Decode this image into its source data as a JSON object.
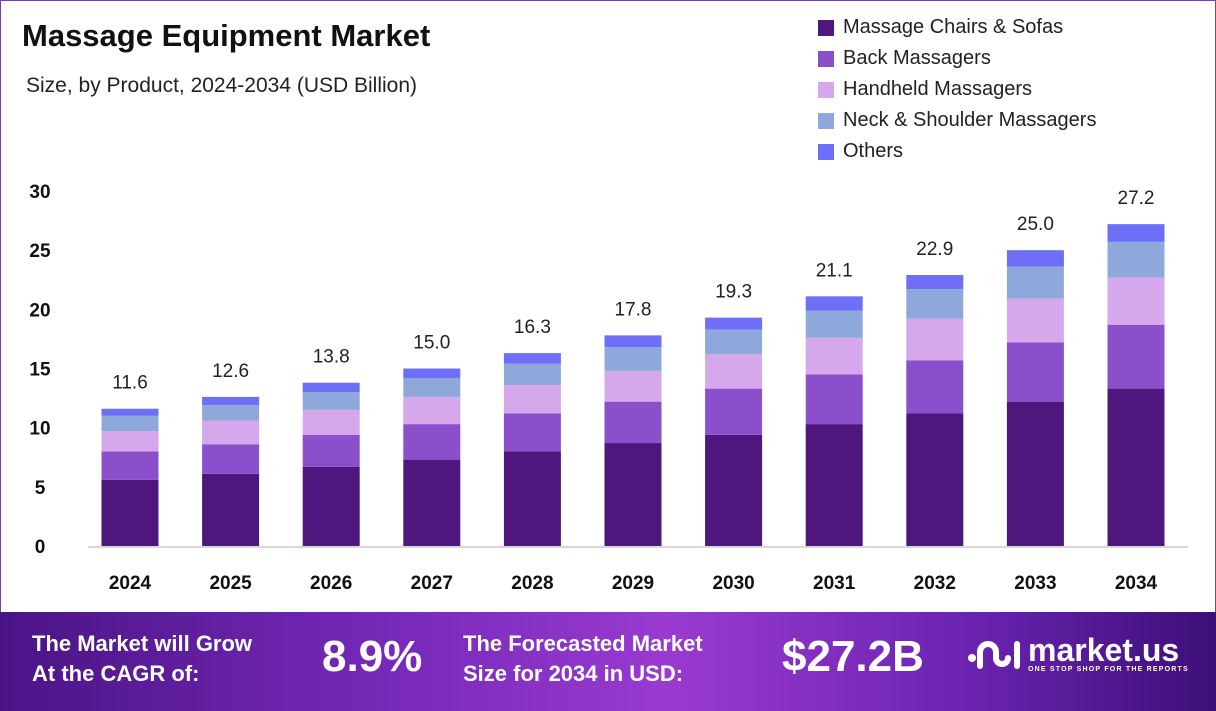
{
  "chart_data": {
    "type": "bar",
    "stacked": true,
    "title": "Massage Equipment Market",
    "subtitle": "Size, by Product, 2024-2034 (USD Billion)",
    "categories": [
      "2024",
      "2025",
      "2026",
      "2027",
      "2028",
      "2029",
      "2030",
      "2031",
      "2032",
      "2033",
      "2034"
    ],
    "series": [
      {
        "name": "Massage Chairs & Sofas",
        "color": "#4f167d",
        "values": [
          5.6,
          6.1,
          6.7,
          7.3,
          8.0,
          8.7,
          9.4,
          10.3,
          11.2,
          12.2,
          13.3
        ]
      },
      {
        "name": "Back Massagers",
        "color": "#8b4fcc",
        "values": [
          2.4,
          2.5,
          2.7,
          3.0,
          3.2,
          3.5,
          3.9,
          4.2,
          4.5,
          5.0,
          5.4
        ]
      },
      {
        "name": "Handheld Massagers",
        "color": "#d4a8ea",
        "values": [
          1.7,
          2.0,
          2.1,
          2.3,
          2.4,
          2.6,
          2.9,
          3.1,
          3.5,
          3.7,
          4.0
        ]
      },
      {
        "name": "Neck & Shoulder Massagers",
        "color": "#8fa8dc",
        "values": [
          1.3,
          1.3,
          1.5,
          1.6,
          1.8,
          2.0,
          2.1,
          2.3,
          2.5,
          2.7,
          3.0
        ]
      },
      {
        "name": "Others",
        "color": "#6e6ef7",
        "values": [
          0.6,
          0.7,
          0.8,
          0.8,
          0.9,
          1.0,
          1.0,
          1.2,
          1.2,
          1.4,
          1.5
        ]
      }
    ],
    "totals": [
      "11.6",
      "12.6",
      "13.8",
      "15.0",
      "16.3",
      "17.8",
      "19.3",
      "21.1",
      "22.9",
      "25.0",
      "27.2"
    ],
    "yticks": [
      "0",
      "5",
      "10",
      "15",
      "20",
      "25",
      "30"
    ],
    "ylim": [
      0,
      30
    ],
    "xlabel": "",
    "ylabel": "",
    "grid": false,
    "legend": "top-right"
  },
  "footer": {
    "cagr_label_1": "The Market will Grow",
    "cagr_label_2": "At the CAGR of:",
    "cagr_value": "8.9%",
    "forecast_label_1": "The Forecasted Market",
    "forecast_label_2": "Size for 2034 in USD:",
    "forecast_value": "$27.2B",
    "brand": "market.us",
    "tagline": "ONE STOP SHOP FOR THE REPORTS"
  }
}
